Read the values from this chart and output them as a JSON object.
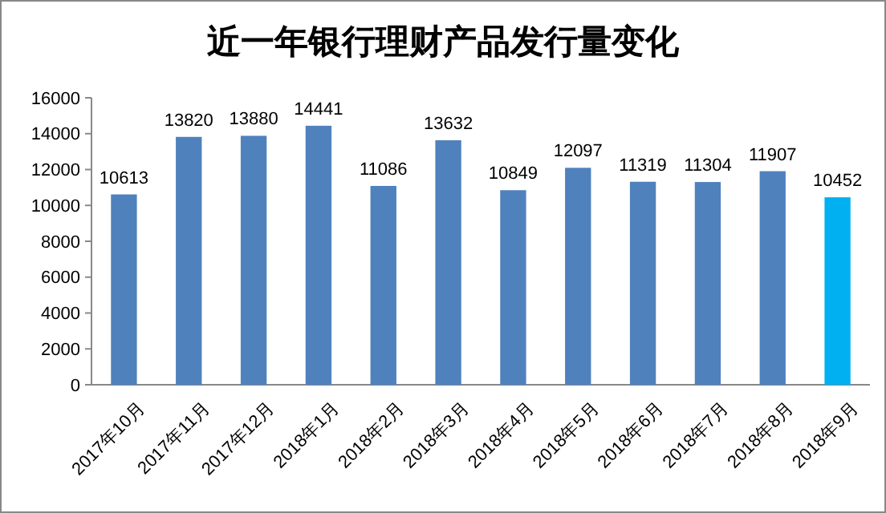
{
  "chart_data": {
    "type": "bar",
    "title": "近一年银行理财产品发行量变化",
    "categories": [
      "2017年10月",
      "2017年11月",
      "2017年12月",
      "2018年1月",
      "2018年2月",
      "2018年3月",
      "2018年4月",
      "2018年5月",
      "2018年6月",
      "2018年7月",
      "2018年8月",
      "2018年9月"
    ],
    "values": [
      10613,
      13820,
      13880,
      14441,
      11086,
      13632,
      10849,
      12097,
      11319,
      11304,
      11907,
      10452
    ],
    "colors": [
      "#4f81bd",
      "#4f81bd",
      "#4f81bd",
      "#4f81bd",
      "#4f81bd",
      "#4f81bd",
      "#4f81bd",
      "#4f81bd",
      "#4f81bd",
      "#4f81bd",
      "#4f81bd",
      "#00b0f0"
    ],
    "ylim": [
      0,
      16000
    ],
    "yticks": [
      0,
      2000,
      4000,
      6000,
      8000,
      10000,
      12000,
      14000,
      16000
    ],
    "data_labels": true
  }
}
